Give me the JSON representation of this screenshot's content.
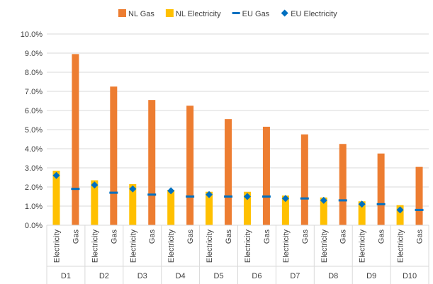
{
  "chart_data": {
    "type": "bar",
    "legend_position": "top",
    "grid": true,
    "ylim": [
      0,
      10
    ],
    "y_ticks": [
      "0.0%",
      "1.0%",
      "2.0%",
      "3.0%",
      "4.0%",
      "5.0%",
      "6.0%",
      "7.0%",
      "8.0%",
      "9.0%",
      "10.0%"
    ],
    "groups": [
      "D1",
      "D2",
      "D3",
      "D4",
      "D5",
      "D6",
      "D7",
      "D8",
      "D9",
      "D10"
    ],
    "subcategories": [
      "Electricity",
      "Gas"
    ],
    "series": [
      {
        "name": "NL Gas",
        "kind": "bar",
        "subcategory": "Gas",
        "color": "#ED7D31",
        "values": [
          8.95,
          7.25,
          6.55,
          6.25,
          5.55,
          5.15,
          4.75,
          4.25,
          3.75,
          3.05
        ]
      },
      {
        "name": "NL Electricity",
        "kind": "bar",
        "subcategory": "Electricity",
        "color": "#FFC000",
        "values": [
          2.85,
          2.35,
          2.15,
          1.85,
          1.75,
          1.75,
          1.55,
          1.45,
          1.25,
          1.05
        ]
      },
      {
        "name": "EU Gas",
        "kind": "dash-marker",
        "subcategory": "Gas",
        "color": "#0070C0",
        "values": [
          1.9,
          1.7,
          1.6,
          1.5,
          1.5,
          1.5,
          1.4,
          1.3,
          1.1,
          0.8
        ]
      },
      {
        "name": "EU Electricity",
        "kind": "diamond-marker",
        "subcategory": "Electricity",
        "color": "#0070C0",
        "values": [
          2.6,
          2.1,
          1.9,
          1.8,
          1.6,
          1.5,
          1.4,
          1.3,
          1.1,
          0.8
        ]
      }
    ]
  }
}
